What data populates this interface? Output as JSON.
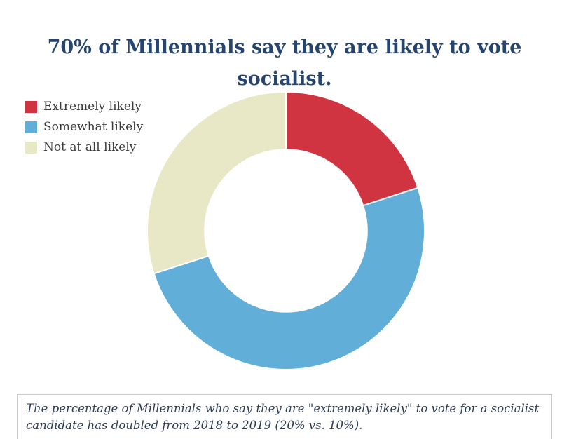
{
  "title": "70% of Millennials say they are likely to vote socialist.",
  "caption": "The percentage of Millennials who say they are \"extremely likely\" to vote for a socialist candidate has doubled from 2018 to 2019 (20% vs. 10%).",
  "colors": {
    "title_navy": "#26456e",
    "extremely_likely_red": "#d03440",
    "somewhat_likely_blue": "#61afd8",
    "not_at_all_likely_beige": "#e8e8c6",
    "caption_border_gray": "#c9c9c9"
  },
  "chart_data": {
    "type": "pie",
    "subtype": "donut",
    "title": "70% of Millennials say they are likely to vote socialist.",
    "categories": [
      "Extremely likely",
      "Somewhat likely",
      "Not at all likely"
    ],
    "values": [
      20,
      50,
      30
    ],
    "unit": "%",
    "colors": [
      "#d03440",
      "#61afd8",
      "#e8e8c6"
    ],
    "start_angle": "top",
    "direction": "clockwise",
    "inner_radius_ratio": 0.59,
    "slice_gap_stroke": "#ffffff",
    "legend_position": "top-left",
    "annotation": "The percentage of Millennials who say they are \"extremely likely\" to vote for a socialist candidate has doubled from 2018 to 2019 (20% vs. 10%)."
  }
}
